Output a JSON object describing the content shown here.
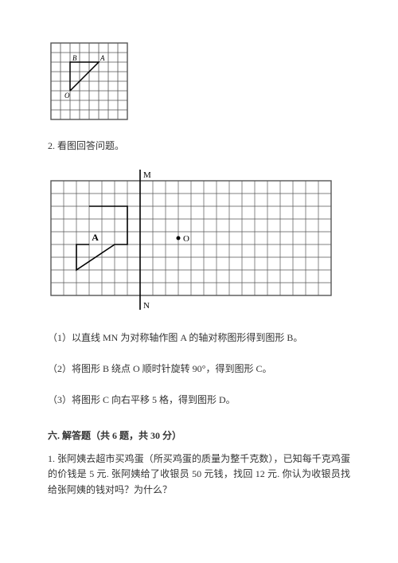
{
  "grid1": {
    "cell": 12,
    "cols": 8,
    "rows": 8,
    "stroke": "#555555",
    "stroke_width": 0.8,
    "border_width": 1.4,
    "labels": {
      "B": "B",
      "A": "A",
      "O": "O"
    },
    "label_font_size": 9,
    "triangle": {
      "O": [
        2,
        5
      ],
      "B": [
        2,
        2
      ],
      "A": [
        5,
        2
      ]
    },
    "triangle_stroke": "#000000",
    "triangle_width": 1.5
  },
  "q2_text": "2. 看图回答问题。",
  "grid2": {
    "cell": 16,
    "cols": 22,
    "rows": 9,
    "stroke": "#555555",
    "stroke_width": 0.7,
    "border_width": 1.4,
    "axis_label_M": "M",
    "axis_label_N": "N",
    "point_O_label": "O",
    "shape_A_label": "A",
    "label_font_size": 11,
    "axis_col": 7,
    "point_O": [
      10,
      4.5
    ],
    "shape_path": [
      [
        3,
        2
      ],
      [
        6,
        2
      ],
      [
        6,
        5
      ],
      [
        5,
        5
      ],
      [
        2,
        7
      ],
      [
        2,
        5
      ],
      [
        3,
        5
      ]
    ],
    "shape_stroke": "#000000",
    "shape_width": 1.6
  },
  "subq1": "（1）以直线 MN 为对称轴作图 A 的轴对称图形得到图形 B。",
  "subq2": "（2）将图形 B 绕点 O 顺时针旋转 90°，得到图形 C。",
  "subq3": "（3）将图形 C 向右平移 5 格，得到图形 D。",
  "section6": "六. 解答题（共 6 题，共 30 分）",
  "wp1": "1. 张阿姨去超市买鸡蛋（所买鸡蛋的质量为整千克数），已知每千克鸡蛋的价钱是 5 元. 张阿姨给了收银员 50 元钱，找回 12 元. 你认为收银员找给张阿姨的钱对吗？为什么？"
}
